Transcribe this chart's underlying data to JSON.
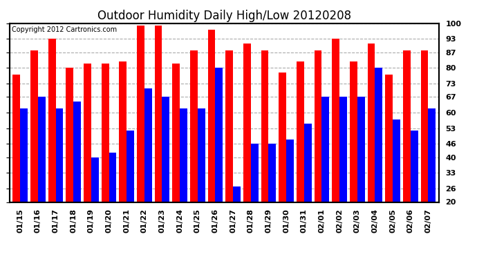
{
  "title": "Outdoor Humidity Daily High/Low 20120208",
  "copyright": "Copyright 2012 Cartronics.com",
  "dates": [
    "01/15",
    "01/16",
    "01/17",
    "01/18",
    "01/19",
    "01/20",
    "01/21",
    "01/22",
    "01/23",
    "01/24",
    "01/25",
    "01/26",
    "01/27",
    "01/28",
    "01/29",
    "01/30",
    "01/31",
    "02/01",
    "02/02",
    "02/03",
    "02/04",
    "02/05",
    "02/06",
    "02/07"
  ],
  "highs": [
    77,
    88,
    93,
    80,
    82,
    82,
    83,
    99,
    99,
    82,
    88,
    97,
    88,
    91,
    88,
    78,
    83,
    88,
    93,
    83,
    91,
    77,
    88,
    88
  ],
  "lows": [
    62,
    67,
    62,
    65,
    40,
    42,
    52,
    71,
    67,
    62,
    62,
    80,
    27,
    46,
    46,
    48,
    55,
    67,
    67,
    67,
    80,
    57,
    52,
    62
  ],
  "high_color": "#ff0000",
  "low_color": "#0000ff",
  "bg_color": "#ffffff",
  "grid_color": "#aaaaaa",
  "ylim": [
    20,
    100
  ],
  "yticks": [
    20,
    26,
    33,
    40,
    46,
    53,
    60,
    67,
    73,
    80,
    87,
    93,
    100
  ],
  "bar_width": 0.42,
  "title_fontsize": 12,
  "tick_fontsize": 8,
  "copyright_fontsize": 7
}
